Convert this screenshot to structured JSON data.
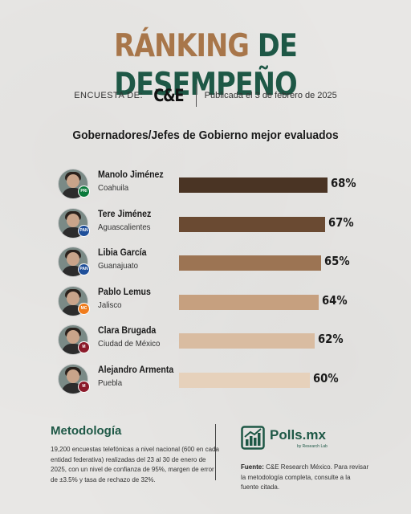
{
  "header": {
    "title_part1": "RÁNKING",
    "title_part2": "DE DESEMPEÑO",
    "survey_label": "ENCUESTA DE:",
    "pollster_logo": "C&E",
    "published": "Publicada el 3 de febrero de 2025"
  },
  "colors": {
    "title_brown": "#a8764a",
    "title_green": "#1e5846",
    "bar_shades": [
      "#4a3424",
      "#6a4a32",
      "#9c7453",
      "#c6a07f",
      "#d9bca1",
      "#e6d1bb"
    ]
  },
  "chart_data": {
    "type": "bar",
    "orientation": "horizontal",
    "title": "Gobernadores/Jefes de Gobierno mejor evaluados",
    "categories": [
      "Manolo Jiménez",
      "Tere Jiménez",
      "Libia García",
      "Pablo Lemus",
      "Clara Brugada",
      "Alejandro Armenta"
    ],
    "subcategories": [
      "Coahuila",
      "Aguascalientes",
      "Guanajuato",
      "Jalisco",
      "Ciudad de México",
      "Puebla"
    ],
    "values": [
      68,
      67,
      65,
      64,
      62,
      60
    ],
    "value_labels": [
      "68%",
      "67%",
      "65%",
      "64%",
      "62%",
      "60%"
    ],
    "party_badges": [
      "pri",
      "pan",
      "pan",
      "mc",
      "morena",
      "morena"
    ],
    "grid": false,
    "legend": "none"
  },
  "methodology": {
    "title": "Metodología",
    "text": "19,200 encuestas telefónicas a nivel nacional (600 en cada entidad federativa) realizadas del 23 al 30 de enero de 2025, con un nivel de confianza de 95%, margen de error de ±3.5% y tasa de rechazo de 32%."
  },
  "footer": {
    "brand": "Polls.mx",
    "brand_sub": "by Research Lab",
    "source_label": "Fuente:",
    "source_text": "C&E Research México. Para revisar la metodología completa, consulte a la fuente citada."
  }
}
